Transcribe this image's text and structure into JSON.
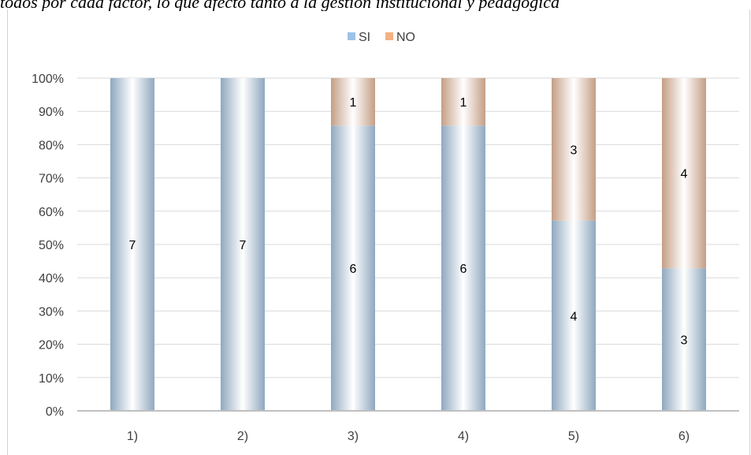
{
  "page": {
    "title": "todos por cada factor, lo que afectó tanto a la gestión institucional y pedagógica"
  },
  "colors": {
    "si": "#9dc3e6",
    "no": "#f4b183",
    "grid": "#d9d9d9",
    "axis": "#bfbfbf"
  },
  "chart_data": {
    "type": "bar",
    "stacked": "percent",
    "categories": [
      "1)",
      "2)",
      "3)",
      "4)",
      "5)",
      "6)"
    ],
    "series": [
      {
        "name": "SI",
        "values": [
          7,
          7,
          6,
          6,
          4,
          3
        ]
      },
      {
        "name": "NO",
        "values": [
          0,
          0,
          1,
          1,
          3,
          4
        ]
      }
    ],
    "ylim": [
      0,
      100
    ],
    "yticks": [
      "0%",
      "10%",
      "20%",
      "30%",
      "40%",
      "50%",
      "60%",
      "70%",
      "80%",
      "90%",
      "100%"
    ],
    "legend": "top-center",
    "grid": true
  }
}
